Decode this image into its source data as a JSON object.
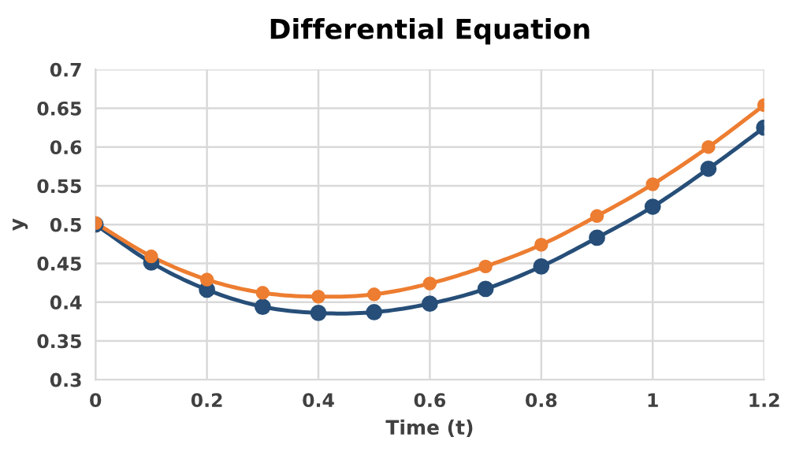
{
  "chart_data": {
    "type": "line",
    "title": "Differential Equation",
    "xlabel": "Time (t)",
    "ylabel": "y",
    "x": [
      0,
      0.1,
      0.2,
      0.3,
      0.4,
      0.5,
      0.6,
      0.7,
      0.8,
      0.9,
      1.0,
      1.1,
      1.2
    ],
    "series": [
      {
        "color": "#264e78",
        "values": [
          0.5,
          0.451,
          0.416,
          0.394,
          0.386,
          0.387,
          0.398,
          0.417,
          0.446,
          0.483,
          0.523,
          0.572,
          0.625
        ]
      },
      {
        "color": "#ed7d31",
        "values": [
          0.502,
          0.459,
          0.429,
          0.412,
          0.407,
          0.41,
          0.424,
          0.446,
          0.474,
          0.511,
          0.552,
          0.6,
          0.654
        ]
      }
    ],
    "xlim": [
      0,
      1.2
    ],
    "xticks": [
      0,
      0.2,
      0.4,
      0.6,
      0.8,
      1,
      1.2
    ],
    "ylim": [
      0.3,
      0.7
    ],
    "yticks": [
      0.3,
      0.35,
      0.4,
      0.45,
      0.5,
      0.55,
      0.6,
      0.65,
      0.7
    ],
    "grid": true,
    "marker": "circle",
    "line_style": "solid"
  }
}
